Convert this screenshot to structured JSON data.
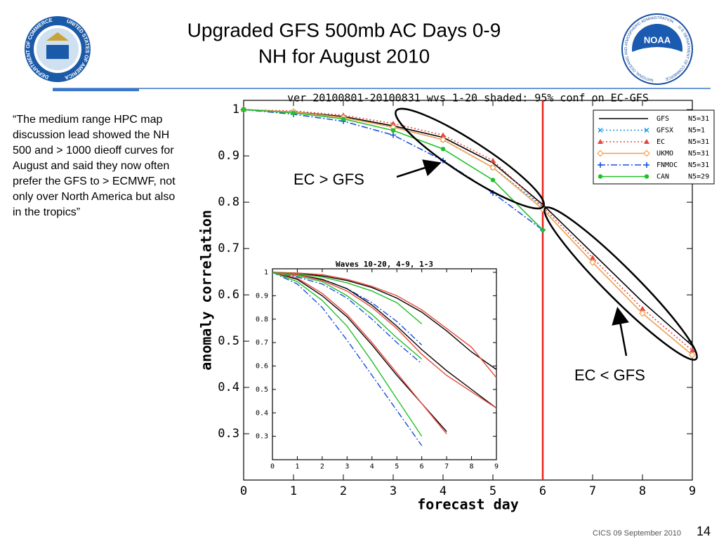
{
  "slide": {
    "title_lines": [
      "Upgraded GFS 500mb AC Days 0-9",
      "NH for August 2010"
    ],
    "quote": "“The medium range HPC map discussion lead showed the NH 500 and > 1000 dieoff curves for August and said they now often prefer the GFS to > ECMWF, not only over North America but also in the tropics”",
    "annotations": [
      "EC > GFS",
      "EC < GFS"
    ],
    "footer": "CICS 09 September 2010",
    "page_number": "14",
    "logo_left": [
      "DEPARTMENT OF COMMERCE",
      "UNITED STATES OF AMERICA"
    ],
    "logo_right": [
      "NOAA",
      "NATIONAL OCEANIC AND ATMOSPHERIC ADMINISTRATION",
      "U.S. DEPARTMENT OF COMMERCE"
    ]
  },
  "chart_data": [
    {
      "type": "line",
      "title": "ver 20100801-20100831 wvs 1-20  shaded: 95% conf on EC-GFS",
      "x_label": "forecast day",
      "y_label": "anomaly correlation",
      "x": [
        0,
        1,
        2,
        3,
        4,
        5,
        6,
        7,
        8,
        9
      ],
      "xlim": [
        0,
        9
      ],
      "xticks": [
        0,
        1,
        2,
        3,
        4,
        5,
        6,
        7,
        8,
        9
      ],
      "ylim": [
        0.2,
        1.02
      ],
      "yticks": [
        0.3,
        0.4,
        0.5,
        0.6,
        0.7,
        0.8,
        0.9,
        1
      ],
      "vline": 6,
      "vline_color": "#e8231c",
      "legend": true,
      "markers": true,
      "series": [
        {
          "name": "GFS",
          "n": "N5=31",
          "color": "#000000",
          "dash": "solid",
          "marker": "none",
          "values": [
            1,
            0.995,
            0.985,
            0.965,
            0.94,
            0.885,
            0.795,
            0.69,
            0.585,
            0.49
          ]
        },
        {
          "name": "GFSX",
          "n": "N5=1",
          "color": "#1e8fe0",
          "dash": "dot",
          "marker": "x",
          "values": [
            1,
            0.995,
            0.983,
            0.962,
            0.935,
            0.875,
            0.79,
            null,
            null,
            null
          ]
        },
        {
          "name": "EC",
          "n": "N5=31",
          "color": "#e8463c",
          "dash": "dot",
          "marker": "triangle",
          "values": [
            1,
            0.997,
            0.988,
            0.97,
            0.945,
            0.89,
            0.79,
            0.68,
            0.57,
            0.48
          ]
        },
        {
          "name": "UKMO",
          "n": "N5=31",
          "color": "#f0a050",
          "dash": "solid",
          "marker": "diamond",
          "values": [
            1,
            0.995,
            0.983,
            0.962,
            0.935,
            0.875,
            0.785,
            0.67,
            0.56,
            0.47
          ]
        },
        {
          "name": "FNMOC",
          "n": "N5=31",
          "color": "#1c4fe0",
          "dash": "dashdot",
          "marker": "plus",
          "values": [
            1,
            0.99,
            0.975,
            0.945,
            0.89,
            0.82,
            0.74,
            null,
            null,
            null
          ]
        },
        {
          "name": "CAN",
          "n": "N5=29",
          "color": "#22c02a",
          "dash": "solid",
          "marker": "circle",
          "values": [
            1,
            0.993,
            0.98,
            0.955,
            0.915,
            0.848,
            0.74,
            null,
            null,
            null
          ]
        }
      ]
    },
    {
      "type": "line",
      "title": "Waves 10-20, 4-9, 1-3",
      "x": [
        0,
        1,
        2,
        3,
        4,
        5,
        6,
        7,
        8,
        9
      ],
      "xlim": [
        0,
        9
      ],
      "xticks": [
        0,
        1,
        2,
        3,
        4,
        5,
        6,
        7,
        8,
        9
      ],
      "ylim": [
        0.2,
        1.015
      ],
      "yticks": [
        0.3,
        0.4,
        0.5,
        0.6,
        0.7,
        0.8,
        0.9,
        1
      ],
      "legend": false,
      "markers": false,
      "series": [
        {
          "color": "#000000",
          "dash": "solid",
          "values": [
            1,
            0.995,
            0.985,
            0.965,
            0.935,
            0.89,
            0.83,
            0.75,
            0.66,
            0.585
          ]
        },
        {
          "color": "#e8463c",
          "dash": "solid",
          "values": [
            1,
            0.997,
            0.99,
            0.97,
            0.94,
            0.9,
            0.84,
            0.76,
            0.68,
            0.55
          ]
        },
        {
          "color": "#1c4fe0",
          "dash": "dashdot",
          "values": [
            1,
            0.99,
            0.97,
            0.93,
            0.87,
            0.79,
            0.69,
            null,
            null,
            null
          ]
        },
        {
          "color": "#22c02a",
          "dash": "solid",
          "values": [
            1,
            0.993,
            0.98,
            0.955,
            0.92,
            0.87,
            0.78,
            null,
            null,
            null
          ]
        },
        {
          "color": "#000000",
          "dash": "solid",
          "values": [
            1,
            0.99,
            0.97,
            0.93,
            0.86,
            0.77,
            0.67,
            0.58,
            0.5,
            0.42
          ]
        },
        {
          "color": "#e8463c",
          "dash": "solid",
          "values": [
            1,
            0.99,
            0.965,
            0.92,
            0.85,
            0.76,
            0.65,
            0.56,
            0.49,
            0.42
          ]
        },
        {
          "color": "#1c4fe0",
          "dash": "dashdot",
          "values": [
            1,
            0.98,
            0.95,
            0.89,
            0.8,
            0.7,
            0.61,
            null,
            null,
            null
          ]
        },
        {
          "color": "#22c02a",
          "dash": "solid",
          "values": [
            1,
            0.985,
            0.96,
            0.9,
            0.82,
            0.72,
            0.63,
            null,
            null,
            null
          ]
        },
        {
          "color": "#000000",
          "dash": "solid",
          "values": [
            1,
            0.97,
            0.9,
            0.81,
            0.69,
            0.56,
            0.44,
            0.32,
            null,
            null
          ]
        },
        {
          "color": "#e8463c",
          "dash": "solid",
          "values": [
            1,
            0.975,
            0.91,
            0.82,
            0.7,
            0.57,
            0.44,
            0.31,
            null,
            null
          ]
        },
        {
          "color": "#1c4fe0",
          "dash": "dashdot",
          "values": [
            1,
            0.95,
            0.85,
            0.71,
            0.56,
            0.41,
            0.26,
            null,
            null,
            null
          ]
        },
        {
          "color": "#22c02a",
          "dash": "solid",
          "values": [
            1,
            0.96,
            0.88,
            0.77,
            0.62,
            0.46,
            0.3,
            null,
            null,
            null
          ]
        }
      ]
    }
  ]
}
